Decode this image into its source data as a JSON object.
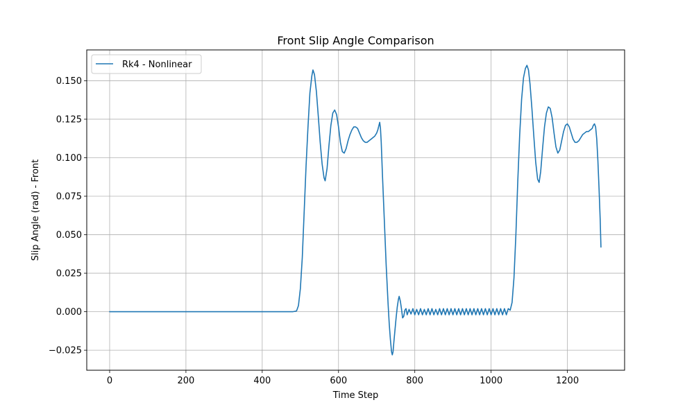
{
  "chart_data": {
    "type": "line",
    "title": "Front Slip Angle Comparison",
    "xlabel": "Time Step",
    "ylabel": "Slip Angle (rad) - Front",
    "xlim": [
      -60,
      1350
    ],
    "ylim": [
      -0.038,
      0.17
    ],
    "xticks": [
      0,
      200,
      400,
      600,
      800,
      1000,
      1200
    ],
    "yticks": [
      -0.025,
      0.0,
      0.025,
      0.05,
      0.075,
      0.1,
      0.125,
      0.15
    ],
    "xtick_labels": [
      "0",
      "200",
      "400",
      "600",
      "800",
      "1000",
      "1200"
    ],
    "ytick_labels": [
      "−0.025",
      "0.000",
      "0.025",
      "0.050",
      "0.075",
      "0.100",
      "0.125",
      "0.150"
    ],
    "grid": true,
    "legend": {
      "location": "top-left"
    },
    "series": [
      {
        "name": "Rk4 - Nonlinear",
        "color": "#1f77b4",
        "points": [
          [
            0,
            0.0
          ],
          [
            100,
            0.0
          ],
          [
            200,
            0.0
          ],
          [
            300,
            0.0
          ],
          [
            400,
            0.0
          ],
          [
            480,
            0.0
          ],
          [
            490,
            0.0005
          ],
          [
            495,
            0.004
          ],
          [
            500,
            0.015
          ],
          [
            505,
            0.035
          ],
          [
            510,
            0.065
          ],
          [
            515,
            0.095
          ],
          [
            520,
            0.12
          ],
          [
            525,
            0.142
          ],
          [
            530,
            0.153
          ],
          [
            533,
            0.157
          ],
          [
            537,
            0.154
          ],
          [
            542,
            0.143
          ],
          [
            547,
            0.127
          ],
          [
            552,
            0.11
          ],
          [
            557,
            0.096
          ],
          [
            562,
            0.087
          ],
          [
            565,
            0.085
          ],
          [
            570,
            0.093
          ],
          [
            575,
            0.108
          ],
          [
            580,
            0.121
          ],
          [
            585,
            0.129
          ],
          [
            590,
            0.131
          ],
          [
            595,
            0.128
          ],
          [
            600,
            0.12
          ],
          [
            605,
            0.11
          ],
          [
            610,
            0.104
          ],
          [
            615,
            0.103
          ],
          [
            620,
            0.106
          ],
          [
            625,
            0.111
          ],
          [
            630,
            0.115
          ],
          [
            635,
            0.118
          ],
          [
            640,
            0.12
          ],
          [
            645,
            0.12
          ],
          [
            650,
            0.119
          ],
          [
            655,
            0.116
          ],
          [
            660,
            0.113
          ],
          [
            665,
            0.111
          ],
          [
            670,
            0.11
          ],
          [
            675,
            0.11
          ],
          [
            680,
            0.111
          ],
          [
            685,
            0.112
          ],
          [
            690,
            0.113
          ],
          [
            695,
            0.114
          ],
          [
            700,
            0.116
          ],
          [
            703,
            0.118
          ],
          [
            706,
            0.121
          ],
          [
            708,
            0.123
          ],
          [
            710,
            0.119
          ],
          [
            712,
            0.11
          ],
          [
            715,
            0.09
          ],
          [
            720,
            0.06
          ],
          [
            725,
            0.03
          ],
          [
            730,
            0.005
          ],
          [
            733,
            -0.008
          ],
          [
            736,
            -0.018
          ],
          [
            739,
            -0.026
          ],
          [
            741,
            -0.028
          ],
          [
            743,
            -0.026
          ],
          [
            745,
            -0.02
          ],
          [
            748,
            -0.012
          ],
          [
            751,
            -0.004
          ],
          [
            754,
            0.003
          ],
          [
            757,
            0.008
          ],
          [
            759,
            0.01
          ],
          [
            762,
            0.007
          ],
          [
            765,
            0.002
          ],
          [
            768,
            -0.004
          ],
          [
            771,
            -0.003
          ],
          [
            774,
            0.001
          ],
          [
            777,
            0.002
          ],
          [
            780,
            -0.002
          ],
          [
            785,
            0.0015
          ],
          [
            790,
            -0.0015
          ],
          [
            795,
            0.002
          ],
          [
            800,
            -0.002
          ],
          [
            805,
            0.0015
          ],
          [
            810,
            -0.002
          ],
          [
            815,
            0.002
          ],
          [
            820,
            -0.002
          ],
          [
            825,
            0.0015
          ],
          [
            830,
            -0.002
          ],
          [
            835,
            0.002
          ],
          [
            840,
            -0.002
          ],
          [
            845,
            0.002
          ],
          [
            850,
            -0.002
          ],
          [
            855,
            0.0015
          ],
          [
            860,
            -0.002
          ],
          [
            865,
            0.002
          ],
          [
            870,
            -0.002
          ],
          [
            875,
            0.002
          ],
          [
            880,
            -0.002
          ],
          [
            885,
            0.002
          ],
          [
            890,
            -0.002
          ],
          [
            895,
            0.002
          ],
          [
            900,
            -0.002
          ],
          [
            905,
            0.002
          ],
          [
            910,
            -0.002
          ],
          [
            915,
            0.002
          ],
          [
            920,
            -0.002
          ],
          [
            925,
            0.002
          ],
          [
            930,
            -0.002
          ],
          [
            935,
            0.002
          ],
          [
            940,
            -0.002
          ],
          [
            945,
            0.002
          ],
          [
            950,
            -0.002
          ],
          [
            955,
            0.002
          ],
          [
            960,
            -0.002
          ],
          [
            965,
            0.002
          ],
          [
            970,
            -0.002
          ],
          [
            975,
            0.002
          ],
          [
            980,
            -0.002
          ],
          [
            985,
            0.002
          ],
          [
            990,
            -0.002
          ],
          [
            995,
            0.002
          ],
          [
            1000,
            -0.002
          ],
          [
            1005,
            0.002
          ],
          [
            1010,
            -0.002
          ],
          [
            1015,
            0.002
          ],
          [
            1020,
            -0.002
          ],
          [
            1025,
            0.002
          ],
          [
            1030,
            -0.002
          ],
          [
            1035,
            0.002
          ],
          [
            1040,
            -0.002
          ],
          [
            1045,
            0.002
          ],
          [
            1050,
            0.001
          ],
          [
            1055,
            0.006
          ],
          [
            1060,
            0.022
          ],
          [
            1065,
            0.05
          ],
          [
            1070,
            0.085
          ],
          [
            1075,
            0.115
          ],
          [
            1080,
            0.138
          ],
          [
            1085,
            0.152
          ],
          [
            1090,
            0.158
          ],
          [
            1094,
            0.16
          ],
          [
            1098,
            0.157
          ],
          [
            1102,
            0.148
          ],
          [
            1107,
            0.132
          ],
          [
            1112,
            0.114
          ],
          [
            1117,
            0.097
          ],
          [
            1122,
            0.086
          ],
          [
            1126,
            0.084
          ],
          [
            1130,
            0.091
          ],
          [
            1135,
            0.106
          ],
          [
            1140,
            0.12
          ],
          [
            1145,
            0.129
          ],
          [
            1150,
            0.133
          ],
          [
            1155,
            0.132
          ],
          [
            1160,
            0.126
          ],
          [
            1165,
            0.116
          ],
          [
            1170,
            0.107
          ],
          [
            1175,
            0.103
          ],
          [
            1180,
            0.105
          ],
          [
            1185,
            0.111
          ],
          [
            1190,
            0.117
          ],
          [
            1195,
            0.121
          ],
          [
            1200,
            0.122
          ],
          [
            1205,
            0.12
          ],
          [
            1210,
            0.116
          ],
          [
            1215,
            0.112
          ],
          [
            1220,
            0.11
          ],
          [
            1225,
            0.11
          ],
          [
            1230,
            0.111
          ],
          [
            1235,
            0.113
          ],
          [
            1240,
            0.115
          ],
          [
            1245,
            0.116
          ],
          [
            1250,
            0.117
          ],
          [
            1255,
            0.117
          ],
          [
            1260,
            0.118
          ],
          [
            1265,
            0.119
          ],
          [
            1268,
            0.121
          ],
          [
            1271,
            0.122
          ],
          [
            1274,
            0.12
          ],
          [
            1277,
            0.112
          ],
          [
            1280,
            0.098
          ],
          [
            1283,
            0.08
          ],
          [
            1286,
            0.06
          ],
          [
            1288,
            0.042
          ]
        ]
      }
    ]
  }
}
